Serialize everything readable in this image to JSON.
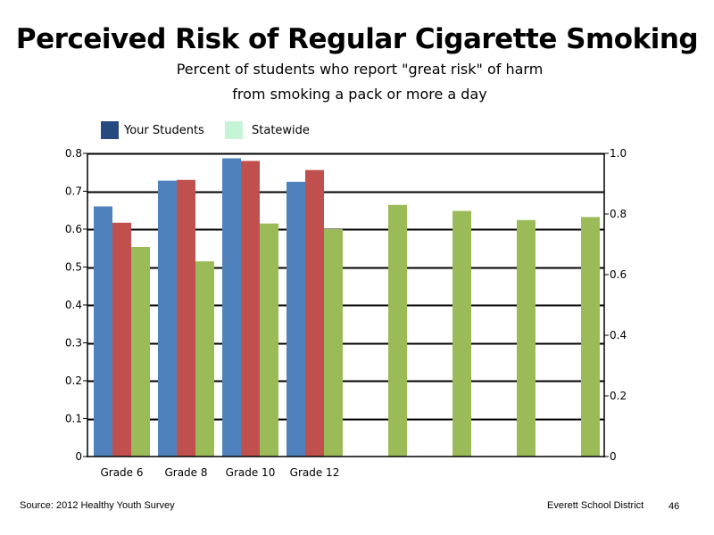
{
  "chart_data": {
    "type": "bar",
    "title": "Perceived Risk of Regular Cigarette Smoking",
    "subtitle_lines": [
      "Percent of students who report \"great risk\" of harm",
      "from smoking a pack or more a day"
    ],
    "legend_placement": "top-left",
    "grid": true,
    "categories": [
      "Grade 6",
      "Grade 8",
      "Grade 10",
      "Grade 12"
    ],
    "y_axis_left": {
      "ylim": [
        0,
        0.8
      ],
      "ticks": [
        "0",
        "0.1",
        "0.2",
        "0.3",
        "0.4",
        "0.5",
        "0.6",
        "0.7",
        "0.8"
      ]
    },
    "y_axis_right": {
      "ylim": [
        0,
        1.0
      ],
      "ticks": [
        "0",
        "0.2",
        "0.4",
        "0.6",
        "0.8",
        "1.0"
      ]
    },
    "series": [
      {
        "name": "Your Students",
        "color": "#4f81bd",
        "axis": "left",
        "values": [
          0.66,
          0.728,
          0.787,
          0.725
        ]
      },
      {
        "color": "#c0504d",
        "axis": "left",
        "values": [
          0.617,
          0.73,
          0.78,
          0.756
        ]
      },
      {
        "name": "Statewide",
        "color": "#9bbb59",
        "axis": "left",
        "values": [
          0.553,
          0.515,
          0.615,
          0.6
        ]
      },
      {
        "color": "#9bbb59",
        "axis": "right",
        "values": [
          0.83,
          0.81,
          0.78,
          0.79
        ]
      }
    ],
    "legend": [
      {
        "label": "Your Students",
        "color": "#264a80"
      },
      {
        "label": "Statewide",
        "color": "#c6f4d6"
      }
    ]
  },
  "footer": {
    "source": "Source: 2012 Healthy Youth Survey",
    "district": "Everett School District",
    "page_number": "46"
  }
}
